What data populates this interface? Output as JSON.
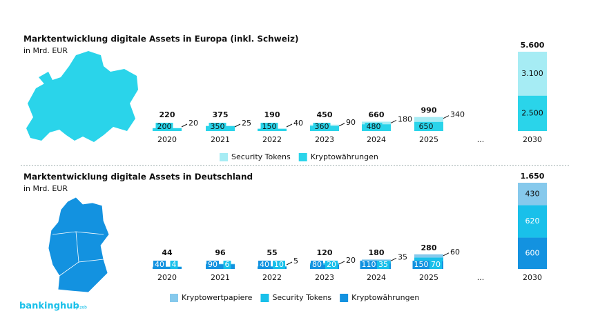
{
  "chart_data": [
    {
      "type": "stacked-bar",
      "title": "Marktentwicklung digitale Assets in Europa (inkl. Schweiz)",
      "subtitle": "in Mrd. EUR",
      "categories": [
        "2020",
        "2021",
        "2022",
        "2023",
        "2024",
        "2025",
        "...",
        "2030"
      ],
      "series": [
        {
          "name": "Security Tokens",
          "color": "#a6ecf4",
          "values": [
            20,
            25,
            40,
            90,
            180,
            340,
            null,
            3100
          ],
          "value_labels": [
            "20",
            "25",
            "40",
            "90",
            "180",
            "340",
            null,
            "3.100"
          ]
        },
        {
          "name": "Kryptowährungen",
          "color": "#2ad4ea",
          "values": [
            200,
            350,
            150,
            360,
            480,
            650,
            null,
            2500
          ],
          "value_labels": [
            "200",
            "350",
            "150",
            "360",
            "480",
            "650",
            null,
            "2.500"
          ]
        }
      ],
      "totals": {
        "values": [
          220,
          375,
          190,
          450,
          660,
          990,
          null,
          5600
        ],
        "value_labels": [
          "220",
          "375",
          "190",
          "450",
          "660",
          "990",
          null,
          "5.600"
        ]
      }
    },
    {
      "type": "stacked-bar",
      "title": "Marktentwicklung digitale Assets in Deutschland",
      "subtitle": "in Mrd. EUR",
      "categories": [
        "2020",
        "2021",
        "2022",
        "2023",
        "2024",
        "2025",
        "...",
        "2030"
      ],
      "series": [
        {
          "name": "Kryptowertpapiere",
          "color": "#86c9ec",
          "values": [
            null,
            null,
            5,
            20,
            35,
            60,
            null,
            430
          ]
        },
        {
          "name": "Security Tokens",
          "color": "#19c0ea",
          "values": [
            4,
            6,
            10,
            20,
            35,
            70,
            null,
            620
          ]
        },
        {
          "name": "Kryptowährungen",
          "color": "#1392e0",
          "values": [
            40,
            90,
            40,
            80,
            110,
            150,
            null,
            600
          ]
        }
      ],
      "totals": {
        "values": [
          44,
          96,
          55,
          120,
          180,
          280,
          null,
          1650
        ],
        "value_labels": [
          "44",
          "96",
          "55",
          "120",
          "180",
          "280",
          null,
          "1.650"
        ]
      }
    }
  ],
  "footer": {
    "brand": "bankinghub",
    "by": "by zeb"
  }
}
